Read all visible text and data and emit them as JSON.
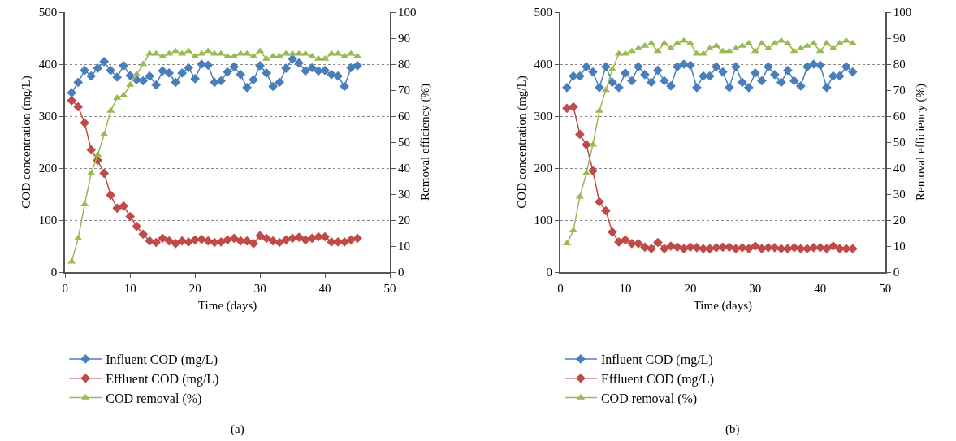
{
  "chart_data": [
    {
      "type": "line",
      "xlabel": "Time (days)",
      "ylabel": "COD concentration (mg/L)",
      "y2label": "Removal efficiency (%)",
      "annotations": [
        "(a)"
      ],
      "x": [
        1,
        2,
        3,
        4,
        5,
        6,
        7,
        8,
        9,
        10,
        11,
        12,
        13,
        14,
        15,
        16,
        17,
        18,
        19,
        20,
        21,
        22,
        23,
        24,
        25,
        26,
        27,
        28,
        29,
        30,
        31,
        32,
        33,
        34,
        35,
        36,
        37,
        38,
        39,
        40,
        41,
        42,
        43,
        44,
        45
      ],
      "xlim": [
        0,
        50
      ],
      "xticks": [
        0,
        10,
        20,
        30,
        40,
        50
      ],
      "ylim": [
        0,
        500
      ],
      "yticks": [
        0,
        100,
        200,
        300,
        400,
        500
      ],
      "y2lim": [
        0,
        100
      ],
      "y2ticks": [
        0,
        10,
        20,
        30,
        40,
        50,
        60,
        70,
        80,
        90,
        100
      ],
      "grid": "y",
      "legend": "bottom",
      "line_style": "solid",
      "series": [
        {
          "name": "Influent COD (mg/L)",
          "color": "#4a7ebb",
          "marker": "diamond",
          "values": [
            345,
            365,
            388,
            377,
            392,
            405,
            388,
            375,
            397,
            378,
            370,
            368,
            377,
            360,
            387,
            383,
            365,
            383,
            393,
            372,
            400,
            398,
            365,
            368,
            385,
            395,
            380,
            355,
            370,
            397,
            383,
            357,
            365,
            392,
            410,
            402,
            387,
            393,
            387,
            388,
            380,
            377,
            357,
            393,
            397
          ]
        },
        {
          "name": "Effluent COD (mg/L)",
          "color": "#be4b48",
          "marker": "diamond",
          "values": [
            330,
            318,
            287,
            235,
            215,
            190,
            148,
            123,
            127,
            107,
            88,
            73,
            60,
            57,
            65,
            60,
            55,
            60,
            58,
            62,
            63,
            60,
            57,
            58,
            62,
            65,
            60,
            60,
            55,
            70,
            65,
            60,
            57,
            62,
            65,
            67,
            62,
            65,
            68,
            68,
            58,
            58,
            58,
            62,
            65
          ]
        },
        {
          "name": "COD removal (%)",
          "color": "#98b954",
          "marker": "triangle",
          "axis": "y2",
          "values": [
            4,
            13,
            26,
            38,
            45,
            53,
            62,
            67,
            68,
            72,
            76,
            80,
            84,
            84,
            83,
            84,
            85,
            84,
            85,
            83,
            84,
            85,
            84,
            84,
            83,
            83,
            84,
            84,
            83,
            85,
            82,
            83,
            83,
            84,
            84,
            84,
            84,
            83,
            82,
            82,
            84,
            84,
            83,
            84,
            83
          ]
        }
      ]
    },
    {
      "type": "line",
      "xlabel": "Time (days)",
      "ylabel": "COD concentration (mg/L)",
      "y2label": "Removal efficiency (%)",
      "annotations": [
        "(b)"
      ],
      "x": [
        1,
        2,
        3,
        4,
        5,
        6,
        7,
        8,
        9,
        10,
        11,
        12,
        13,
        14,
        15,
        16,
        17,
        18,
        19,
        20,
        21,
        22,
        23,
        24,
        25,
        26,
        27,
        28,
        29,
        30,
        31,
        32,
        33,
        34,
        35,
        36,
        37,
        38,
        39,
        40,
        41,
        42,
        43,
        44,
        45
      ],
      "xlim": [
        0,
        50
      ],
      "xticks": [
        0,
        10,
        20,
        30,
        40,
        50
      ],
      "ylim": [
        0,
        500
      ],
      "yticks": [
        0,
        100,
        200,
        300,
        400,
        500
      ],
      "y2lim": [
        0,
        100
      ],
      "y2ticks": [
        0,
        10,
        20,
        30,
        40,
        50,
        60,
        70,
        80,
        90,
        100
      ],
      "grid": "y",
      "legend": "bottom",
      "line_style": "solid",
      "series": [
        {
          "name": "Influent COD (mg/L)",
          "color": "#4a7ebb",
          "marker": "diamond",
          "values": [
            355,
            377,
            377,
            395,
            385,
            355,
            395,
            365,
            355,
            383,
            368,
            395,
            380,
            365,
            388,
            368,
            358,
            395,
            400,
            398,
            355,
            377,
            377,
            395,
            385,
            355,
            395,
            365,
            355,
            383,
            368,
            395,
            380,
            365,
            388,
            368,
            358,
            395,
            400,
            398,
            355,
            377,
            377,
            395,
            385
          ]
        },
        {
          "name": "Effluent COD (mg/L)",
          "color": "#be4b48",
          "marker": "diamond",
          "values": [
            315,
            318,
            265,
            245,
            195,
            135,
            118,
            77,
            58,
            62,
            55,
            55,
            48,
            45,
            57,
            45,
            50,
            48,
            45,
            48,
            47,
            45,
            45,
            47,
            48,
            48,
            45,
            47,
            45,
            50,
            45,
            47,
            47,
            45,
            45,
            47,
            45,
            45,
            47,
            47,
            45,
            50,
            45,
            45,
            45
          ]
        },
        {
          "name": "COD removal (%)",
          "color": "#98b954",
          "marker": "triangle",
          "axis": "y2",
          "values": [
            11,
            16,
            29,
            38,
            49,
            62,
            70,
            78,
            84,
            84,
            85,
            86,
            87,
            88,
            85,
            88,
            86,
            88,
            89,
            88,
            84,
            84,
            86,
            87,
            85,
            85,
            86,
            87,
            88,
            85,
            88,
            86,
            88,
            89,
            88,
            85,
            86,
            87,
            88,
            85,
            88,
            86,
            88,
            89,
            88
          ]
        }
      ]
    }
  ]
}
